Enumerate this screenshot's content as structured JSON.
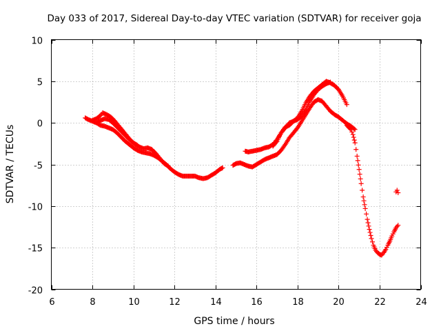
{
  "chart_data": {
    "type": "scatter",
    "title": "Day 033 of 2017, Sidereal Day-to-day VTEC variation (SDTVAR) for receiver goja",
    "xlabel": "GPS time / hours",
    "ylabel": "SDTVAR / TECUs",
    "xlim": [
      6,
      24
    ],
    "ylim": [
      -20,
      10
    ],
    "xticks": [
      "6",
      "8",
      "10",
      "12",
      "14",
      "16",
      "18",
      "20",
      "22",
      "24"
    ],
    "yticks": [
      "10",
      "5",
      "0",
      "-5",
      "-10",
      "-15",
      "-20"
    ],
    "grid": true,
    "marker": "+",
    "color": "#ff0000",
    "series": [
      {
        "name": "arc-1",
        "x": [
          7.65,
          7.8,
          8.0,
          8.2,
          8.4,
          8.6,
          8.8,
          9.0,
          9.2,
          9.4,
          9.6,
          9.8,
          10.0,
          10.2,
          10.4,
          10.6,
          10.8,
          11.0,
          11.2,
          11.4,
          11.6,
          11.8,
          12.0,
          12.2,
          12.4,
          12.6,
          12.8,
          13.0,
          13.2,
          13.4,
          13.6,
          13.8,
          14.0,
          14.2,
          14.35
        ],
        "y": [
          0.6,
          0.4,
          0.2,
          0.0,
          -0.3,
          -0.4,
          -0.6,
          -0.8,
          -1.2,
          -1.7,
          -2.2,
          -2.6,
          -3.0,
          -3.3,
          -3.5,
          -3.6,
          -3.7,
          -3.9,
          -4.2,
          -4.6,
          -5.0,
          -5.5,
          -5.9,
          -6.2,
          -6.4,
          -6.4,
          -6.4,
          -6.4,
          -6.6,
          -6.7,
          -6.6,
          -6.3,
          -6.0,
          -5.6,
          -5.4
        ]
      },
      {
        "name": "arc-2",
        "x": [
          8.0,
          8.2,
          8.4,
          8.5,
          8.7,
          8.9,
          9.1,
          9.3,
          9.5,
          9.7,
          9.9,
          10.1,
          10.3,
          10.5,
          10.7,
          10.9,
          11.1,
          11.3,
          11.5,
          11.7
        ],
        "y": [
          0.3,
          0.5,
          0.9,
          1.2,
          1.0,
          0.7,
          0.2,
          -0.4,
          -1.0,
          -1.6,
          -2.2,
          -2.6,
          -2.9,
          -3.1,
          -3.0,
          -3.2,
          -3.7,
          -4.3,
          -4.9,
          -5.2
        ]
      },
      {
        "name": "arc-3",
        "x": [
          8.2,
          8.4,
          8.6,
          8.8,
          9.0,
          9.2,
          9.4,
          9.6,
          9.8,
          10.0,
          10.2
        ],
        "y": [
          0.0,
          0.3,
          0.5,
          0.4,
          0.0,
          -0.5,
          -1.0,
          -1.5,
          -2.0,
          -2.4,
          -2.7
        ]
      },
      {
        "name": "arc-4",
        "x": [
          14.85,
          15.0,
          15.2,
          15.4,
          15.6,
          15.8,
          16.0,
          16.2,
          16.4,
          16.6,
          16.8,
          17.0,
          17.2,
          17.4,
          17.6,
          17.8,
          18.0,
          18.2,
          18.4,
          18.6,
          18.8,
          19.0,
          19.2,
          19.4,
          19.6,
          19.8,
          20.0,
          20.2,
          20.4,
          20.6,
          20.8
        ],
        "y": [
          -5.1,
          -4.9,
          -4.8,
          -5.0,
          -5.2,
          -5.3,
          -5.0,
          -4.7,
          -4.4,
          -4.2,
          -4.0,
          -3.8,
          -3.3,
          -2.6,
          -1.8,
          -1.2,
          -0.6,
          0.2,
          1.0,
          1.8,
          2.5,
          2.8,
          2.6,
          2.0,
          1.4,
          1.0,
          0.7,
          0.3,
          -0.1,
          -0.4,
          -0.8
        ]
      },
      {
        "name": "arc-5",
        "x": [
          15.45,
          15.6,
          15.8,
          16.0,
          16.2,
          16.4,
          16.6,
          16.8,
          17.0,
          17.2,
          17.4,
          17.6,
          17.8,
          18.0,
          18.2,
          18.4,
          18.6,
          18.8,
          19.0,
          19.2,
          19.4,
          19.6,
          19.8,
          20.0,
          20.2,
          20.4
        ],
        "y": [
          -3.4,
          -3.5,
          -3.4,
          -3.3,
          -3.2,
          -3.0,
          -2.9,
          -2.6,
          -2.0,
          -1.2,
          -0.5,
          -0.3,
          0.2,
          0.6,
          1.4,
          2.4,
          3.2,
          3.8,
          4.2,
          4.6,
          5.0,
          4.8,
          4.5,
          4.0,
          3.2,
          2.2
        ]
      },
      {
        "name": "arc-6",
        "x": [
          16.8,
          17.0,
          17.2,
          17.4,
          17.6,
          17.8,
          18.0,
          18.2,
          18.4,
          18.6,
          18.8,
          19.0,
          19.2,
          19.4,
          19.6
        ],
        "y": [
          -2.8,
          -2.2,
          -1.2,
          -0.6,
          0.0,
          0.2,
          0.4,
          0.8,
          1.6,
          2.6,
          3.4,
          4.0,
          4.4,
          4.7,
          4.9
        ]
      },
      {
        "name": "arc-7",
        "x": [
          20.4,
          20.6,
          20.7,
          20.8,
          20.9,
          21.0,
          21.1,
          21.2,
          21.3,
          21.4,
          21.5,
          21.6,
          21.7,
          21.8,
          21.9,
          22.0,
          22.1,
          22.2,
          22.3,
          22.4,
          22.5,
          22.6,
          22.7,
          22.8,
          22.9
        ],
        "y": [
          -0.3,
          -0.8,
          -1.4,
          -2.4,
          -4.0,
          -5.6,
          -7.3,
          -8.9,
          -10.3,
          -11.6,
          -12.8,
          -13.9,
          -14.7,
          -15.3,
          -15.6,
          -15.8,
          -15.9,
          -15.6,
          -15.2,
          -14.7,
          -14.2,
          -13.6,
          -13.1,
          -12.6,
          -12.3
        ]
      },
      {
        "name": "arc-8",
        "x": [
          22.8,
          22.85,
          22.9
        ],
        "y": [
          -8.3,
          -8.1,
          -8.4
        ]
      }
    ]
  }
}
